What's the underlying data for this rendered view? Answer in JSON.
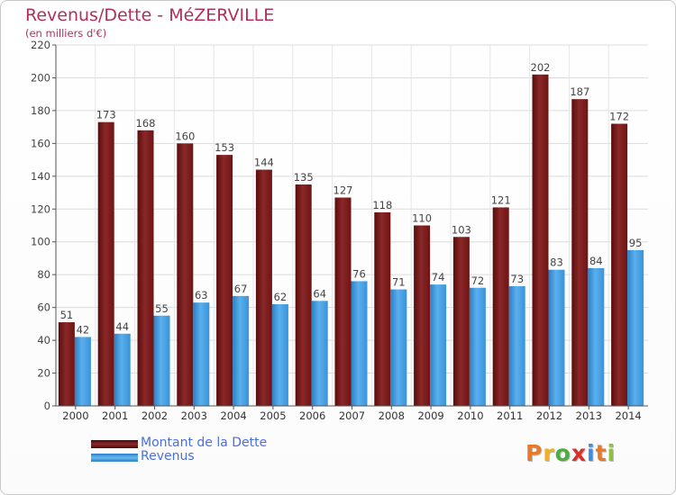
{
  "title": "Revenus/Dette - MéZERVILLE",
  "subtitle": "(en milliers d'€)",
  "colors": {
    "title": "#b0305a",
    "dette": "#7a1a1a",
    "revenus": "#3c96dc",
    "legend_text": "#4a6fe0"
  },
  "legend": [
    {
      "label": "Montant de la Dette",
      "color": "#6a1010"
    },
    {
      "label": "Revenus",
      "color": "#4aa3e6"
    }
  ],
  "logo": {
    "text": "Proxiti",
    "colors": [
      "#e8782a",
      "#f0b020",
      "#4cae3c",
      "#d9302a",
      "#3c8ee0",
      "#e8782a",
      "#8cc43c"
    ]
  },
  "chart_data": {
    "type": "bar",
    "categories": [
      "2000",
      "2001",
      "2002",
      "2003",
      "2004",
      "2005",
      "2006",
      "2007",
      "2008",
      "2009",
      "2010",
      "2011",
      "2012",
      "2013",
      "2014"
    ],
    "series": [
      {
        "name": "Montant de la Dette",
        "values": [
          51,
          173,
          168,
          160,
          153,
          144,
          135,
          127,
          118,
          110,
          103,
          121,
          202,
          187,
          172
        ]
      },
      {
        "name": "Revenus",
        "values": [
          42,
          44,
          55,
          63,
          67,
          62,
          64,
          76,
          71,
          74,
          72,
          73,
          83,
          84,
          95
        ]
      }
    ],
    "yticks": [
      "0",
      "20",
      "40",
      "60",
      "80",
      "100",
      "120",
      "140",
      "160",
      "180",
      "200",
      "220"
    ],
    "ylim": [
      0,
      220
    ],
    "grid": true
  }
}
